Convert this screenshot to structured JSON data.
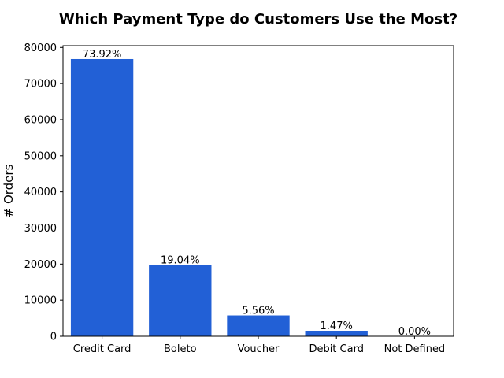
{
  "chart_data": {
    "type": "bar",
    "title": "Which Payment Type do Customers Use the Most?",
    "xlabel": "",
    "ylabel": "# Orders",
    "categories": [
      "Credit Card",
      "Boleto",
      "Voucher",
      "Debit Card",
      "Not Defined"
    ],
    "values": [
      76795,
      19784,
      5775,
      1529,
      3
    ],
    "data_labels": [
      "73.92%",
      "19.04%",
      "5.56%",
      "1.47%",
      "0.00%"
    ],
    "ylim": [
      0,
      80500
    ],
    "yticks": [
      0,
      10000,
      20000,
      30000,
      40000,
      50000,
      60000,
      70000,
      80000
    ],
    "ytick_labels": [
      "0",
      "10000",
      "20000",
      "30000",
      "40000",
      "50000",
      "60000",
      "70000",
      "80000"
    ],
    "bar_color": "#2260d6",
    "grid": false,
    "legend": "none"
  }
}
